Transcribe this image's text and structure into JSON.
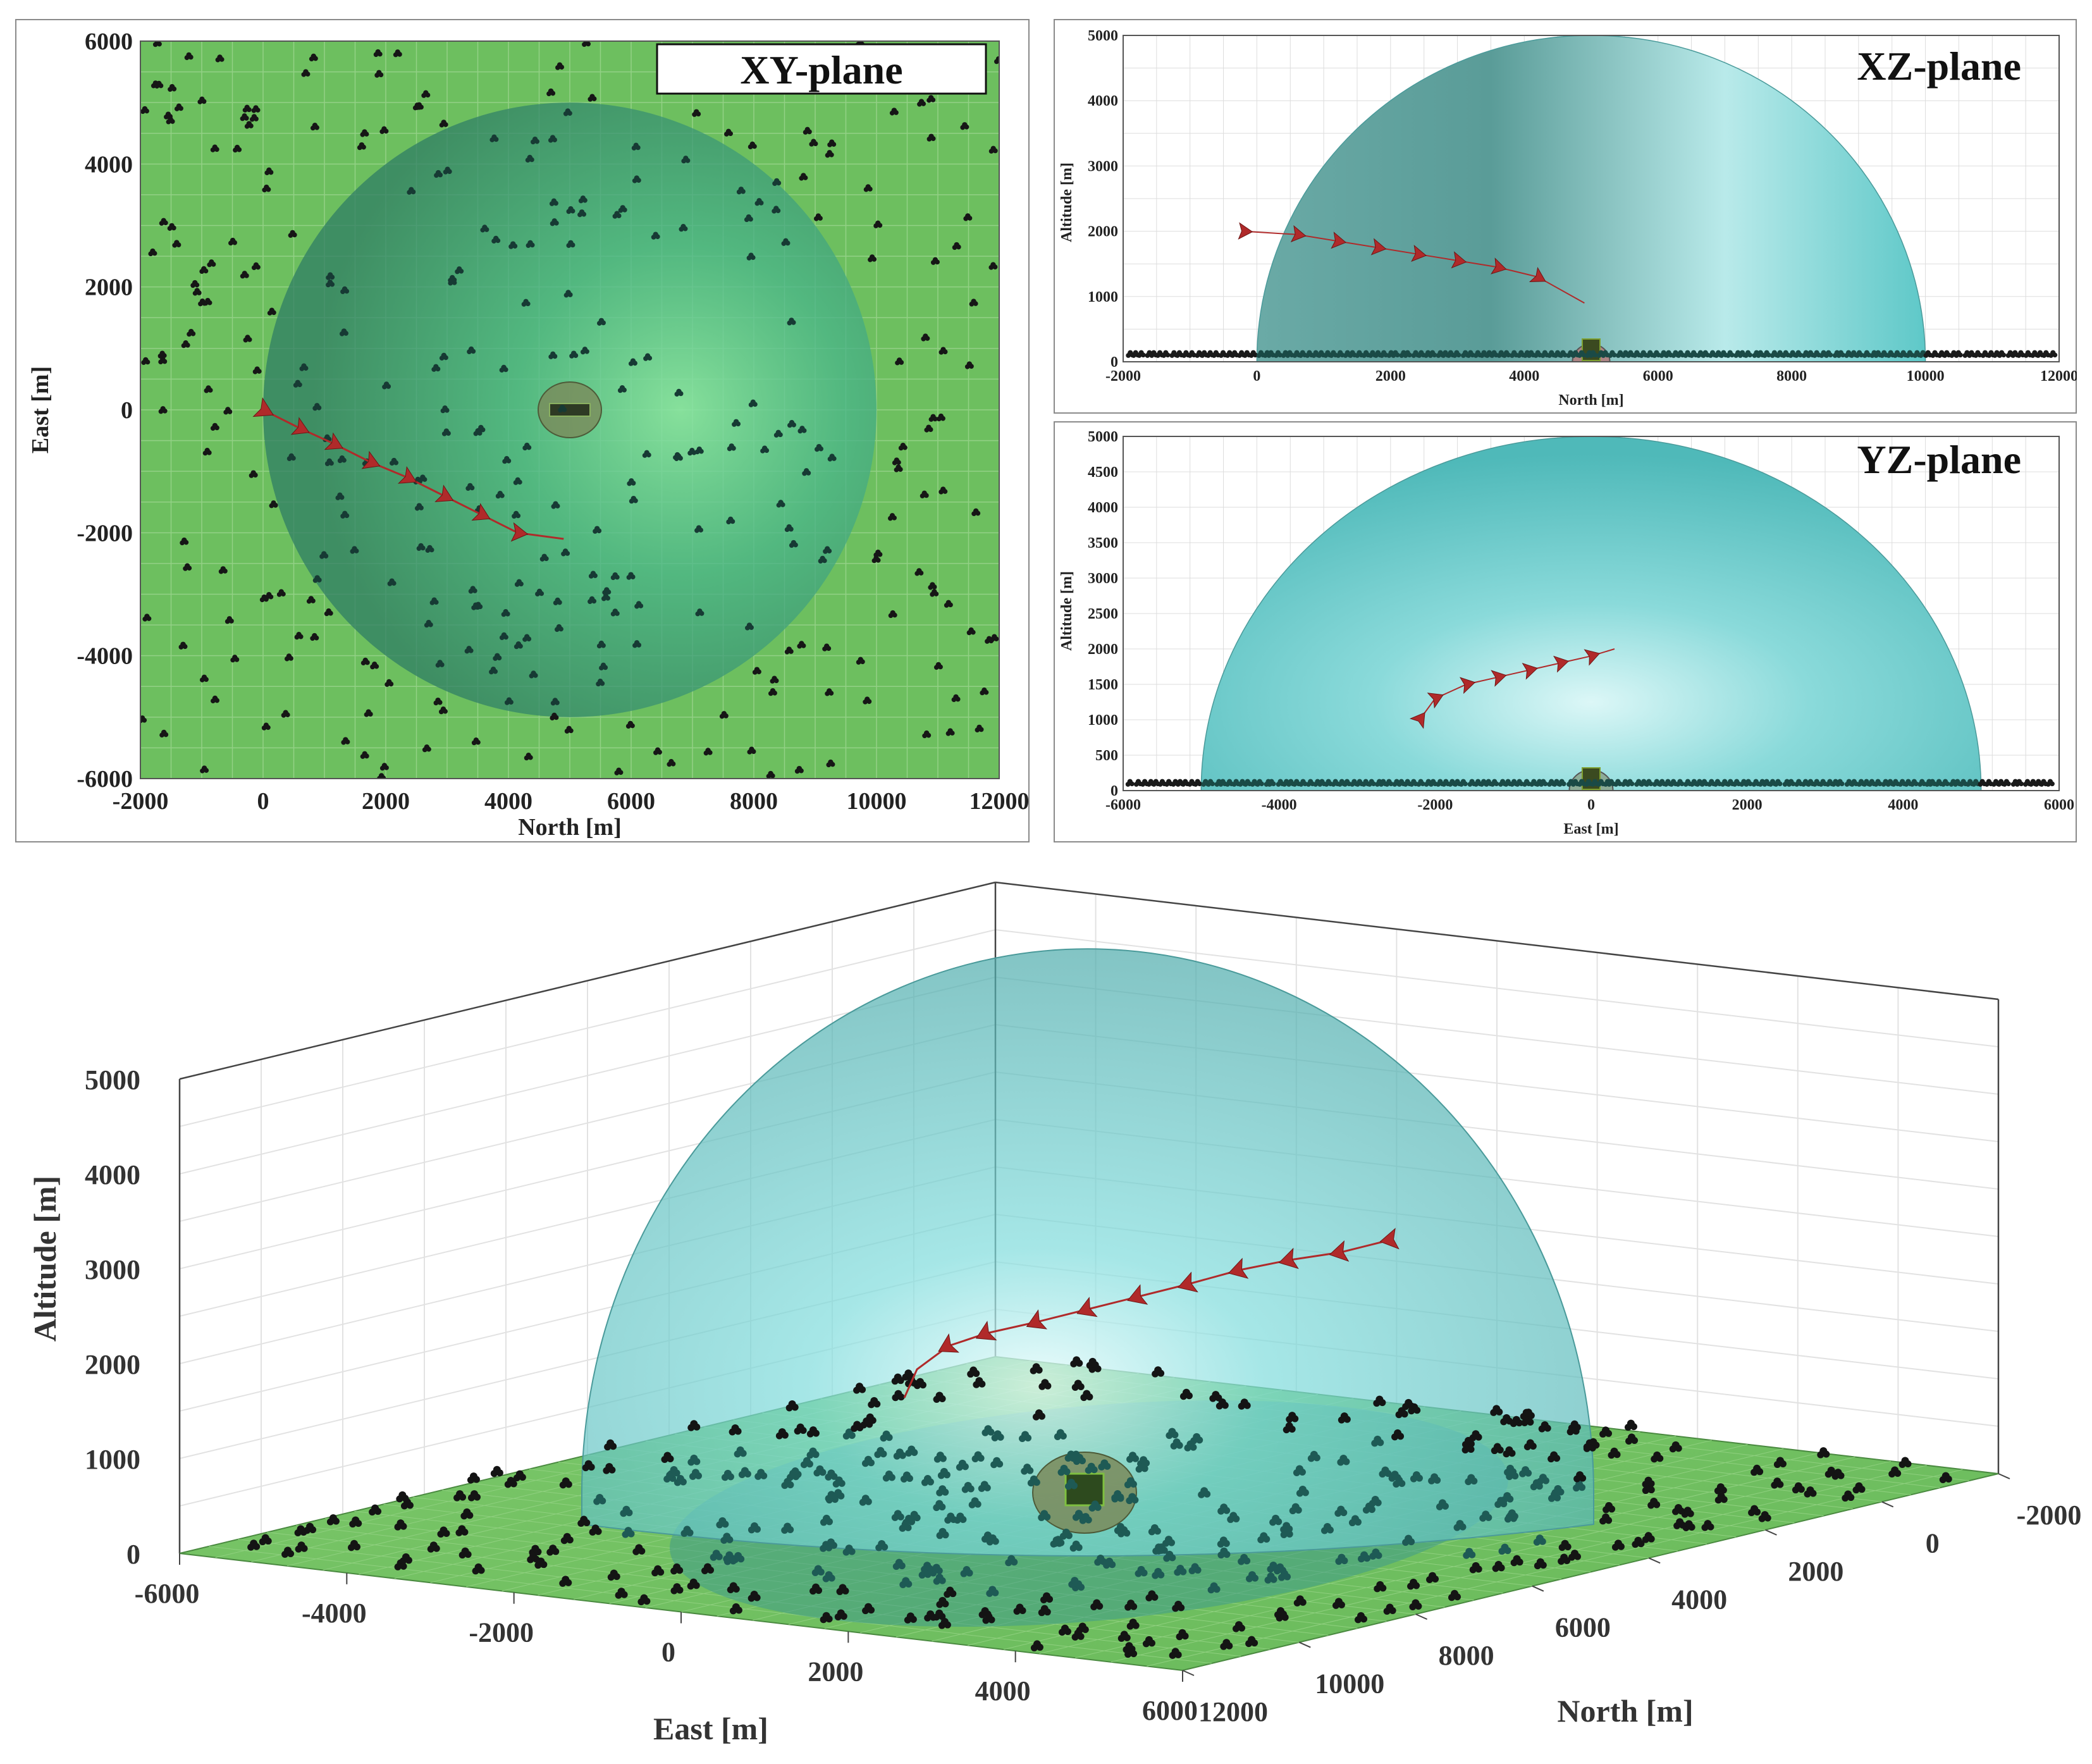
{
  "chart_data": [
    {
      "type": "scatter",
      "view": "top-down",
      "title": "XY-plane",
      "xlabel": "North [m]",
      "ylabel": "East [m]",
      "xlim": [
        -2000,
        12000
      ],
      "ylim": [
        -6000,
        6000
      ],
      "xticks": [
        "-2000",
        "0",
        "2000",
        "4000",
        "6000",
        "8000",
        "10000",
        "12000"
      ],
      "yticks": [
        "-6000",
        "-4000",
        "-2000",
        "0",
        "2000",
        "4000",
        "6000"
      ],
      "grid": true,
      "dome_center_north": 5000,
      "dome_center_east": 0,
      "dome_radius": 5000,
      "ground_unit": {
        "north": 5000,
        "east": 0
      },
      "trajectory": [
        {
          "north": 0,
          "east": 0
        },
        {
          "north": 600,
          "east": -300
        },
        {
          "north": 1150,
          "east": -550
        },
        {
          "north": 1750,
          "east": -850
        },
        {
          "north": 2350,
          "east": -1100
        },
        {
          "north": 2950,
          "east": -1400
        },
        {
          "north": 3550,
          "east": -1700
        },
        {
          "north": 4150,
          "east": -2000
        },
        {
          "north": 4900,
          "east": -2100
        }
      ]
    },
    {
      "type": "scatter",
      "view": "side",
      "title": "XZ-plane",
      "xlabel": "North [m]",
      "ylabel": "Altitude [m]",
      "xlim": [
        -2000,
        12000
      ],
      "ylim": [
        0,
        5000
      ],
      "xticks": [
        "-2000",
        "0",
        "2000",
        "4000",
        "6000",
        "8000",
        "10000",
        "12000"
      ],
      "yticks": [
        "0",
        "1000",
        "2000",
        "3000",
        "4000",
        "5000"
      ],
      "grid": true,
      "dome_center": 5000,
      "dome_radius": 5000,
      "trajectory": [
        {
          "north": -200,
          "alt": 2000
        },
        {
          "north": 600,
          "alt": 1950
        },
        {
          "north": 1200,
          "alt": 1850
        },
        {
          "north": 1800,
          "alt": 1750
        },
        {
          "north": 2400,
          "alt": 1650
        },
        {
          "north": 3000,
          "alt": 1550
        },
        {
          "north": 3600,
          "alt": 1450
        },
        {
          "north": 4200,
          "alt": 1300
        },
        {
          "north": 4900,
          "alt": 900
        }
      ]
    },
    {
      "type": "scatter",
      "view": "side",
      "title": "YZ-plane",
      "xlabel": "East [m]",
      "ylabel": "Altitude [m]",
      "xlim": [
        -6000,
        6000
      ],
      "ylim": [
        0,
        5000
      ],
      "xticks": [
        "-6000",
        "-4000",
        "-2000",
        "0",
        "2000",
        "4000",
        "6000"
      ],
      "yticks": [
        "0",
        "500",
        "1000",
        "1500",
        "2000",
        "2500",
        "3000",
        "3500",
        "4000",
        "4500",
        "5000"
      ],
      "grid": true,
      "dome_center": 0,
      "dome_radius": 5000,
      "trajectory": [
        {
          "east": -2200,
          "alt": 1000
        },
        {
          "east": -2000,
          "alt": 1300
        },
        {
          "east": -1600,
          "alt": 1500
        },
        {
          "east": -1200,
          "alt": 1600
        },
        {
          "east": -800,
          "alt": 1700
        },
        {
          "east": -400,
          "alt": 1800
        },
        {
          "east": 0,
          "alt": 1900
        },
        {
          "east": 300,
          "alt": 2000
        }
      ]
    },
    {
      "type": "scatter",
      "view": "3d",
      "xlabel": "East [m]",
      "ylabel": "North [m]",
      "zlabel": "Altitude [m]",
      "east_ticks": [
        "-6000",
        "-4000",
        "-2000",
        "0",
        "2000",
        "4000",
        "6000"
      ],
      "north_ticks": [
        "12000",
        "10000",
        "8000",
        "6000",
        "4000",
        "2000",
        "0",
        "-2000"
      ],
      "alt_ticks": [
        "0",
        "1000",
        "2000",
        "3000",
        "4000",
        "5000"
      ],
      "grid": true,
      "dome_radius": 5000
    }
  ],
  "colors": {
    "ground": "#6dbf5f",
    "ground_grid": "#93d186",
    "dome": "#5ec8c8",
    "dome_dark": "#3f8f8a",
    "tree": "#161616",
    "trajectory": "#b02a2a",
    "unit_zone": "#7a8a5a",
    "frame": "#8a8a8a"
  }
}
